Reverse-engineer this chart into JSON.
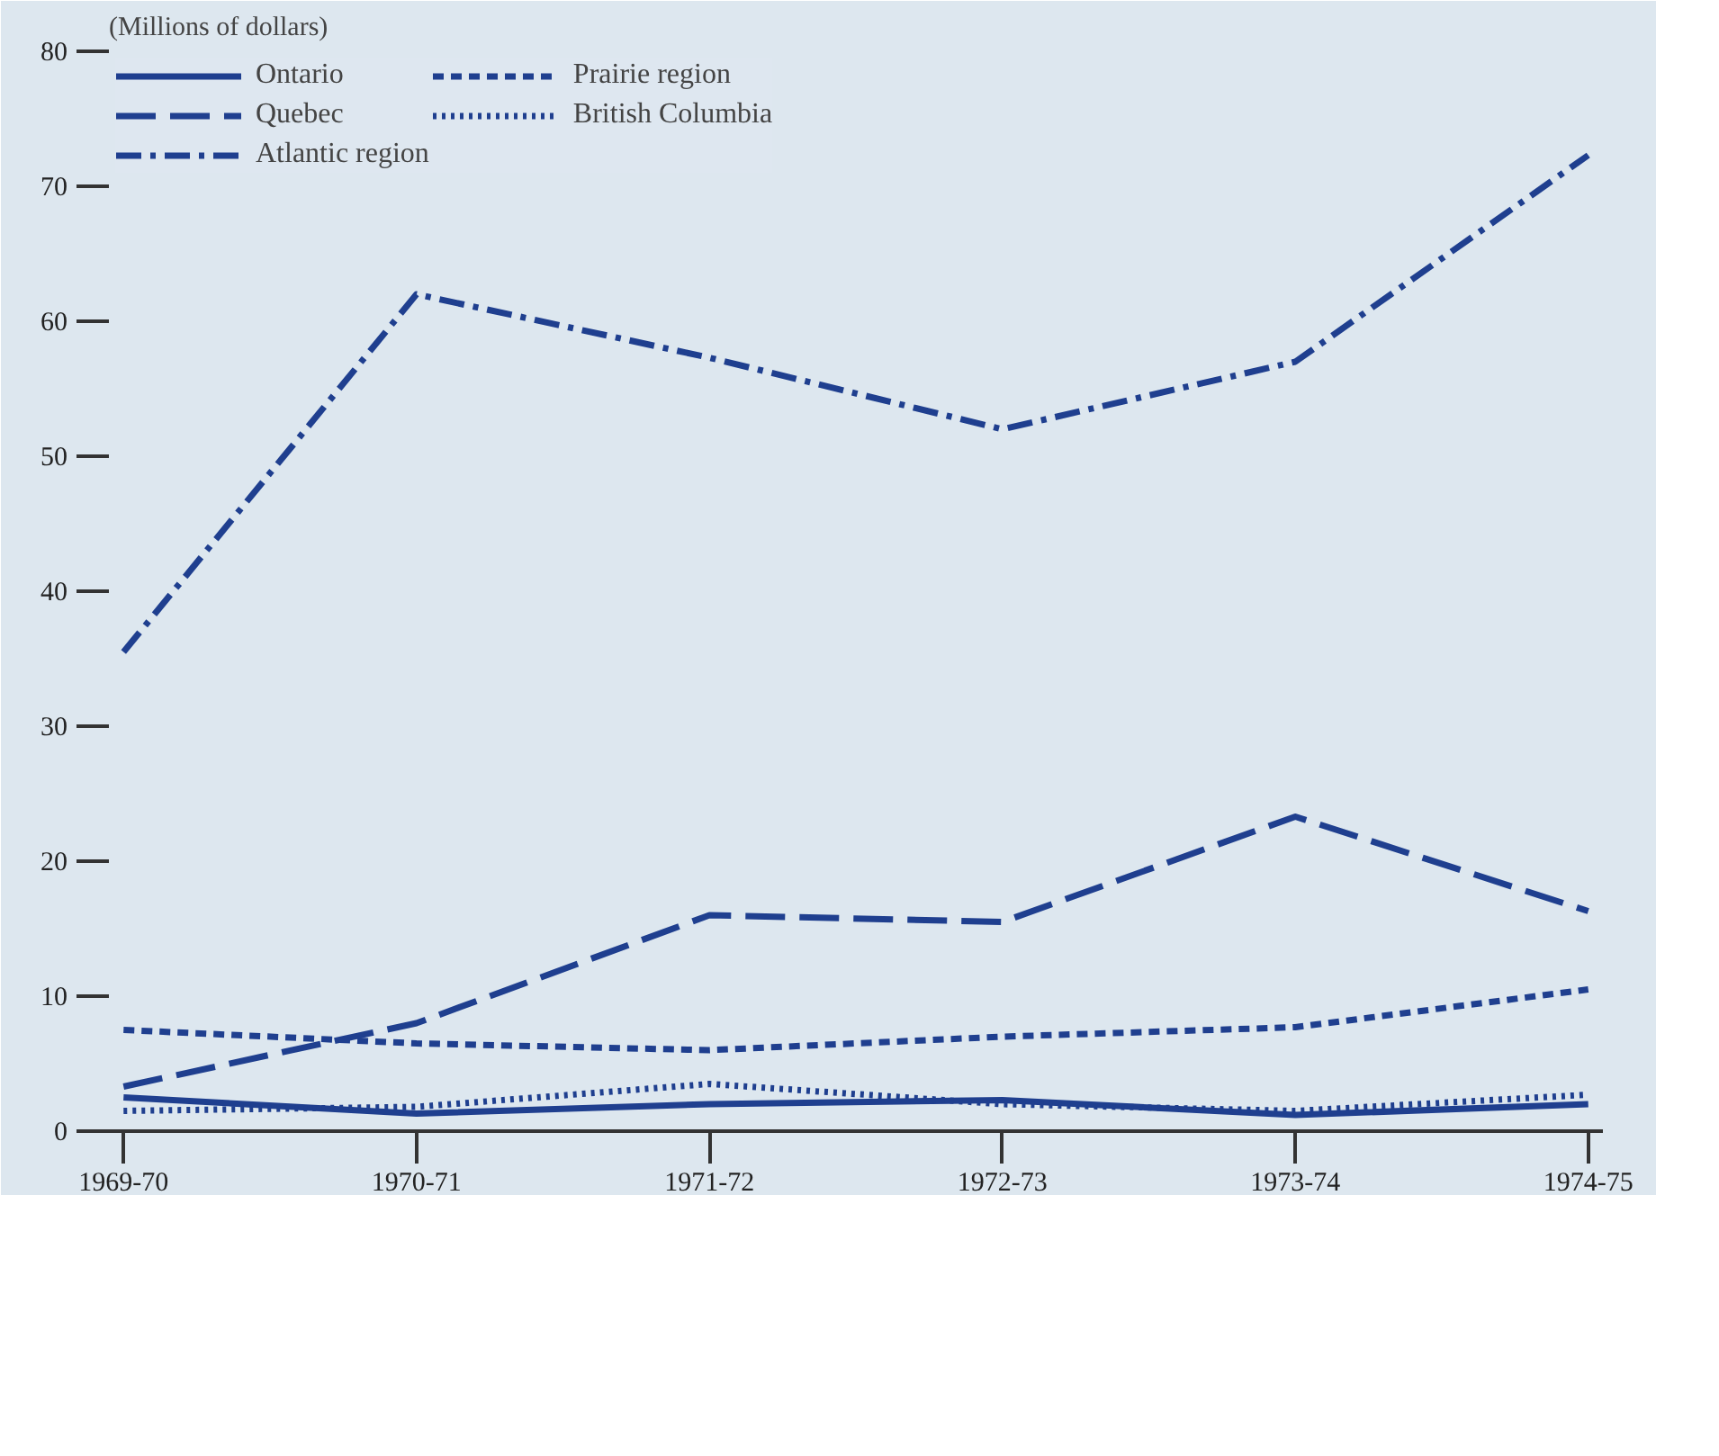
{
  "chart_data": {
    "type": "line",
    "ylabel": "(Millions of dollars)",
    "categories": [
      "1969-70",
      "1970-71",
      "1971-72",
      "1972-73",
      "1973-74",
      "1974-75"
    ],
    "ylim": [
      0,
      80
    ],
    "yticks": [
      0,
      10,
      20,
      30,
      40,
      50,
      60,
      70,
      80
    ],
    "grid": false,
    "legend": "top",
    "marker": "none",
    "series": [
      {
        "name": "Ontario",
        "color": "#1f3f8f",
        "line_style": "solid",
        "values": [
          2.5,
          1.3,
          2,
          2.3,
          1.2,
          2
        ]
      },
      {
        "name": "Quebec",
        "color": "#1f3f8f",
        "line_style": "long_dashed",
        "values": [
          3.3,
          8,
          16,
          15.5,
          23.3,
          16.3
        ]
      },
      {
        "name": "Atlantic region",
        "color": "#1f3f8f",
        "line_style": "dashdot",
        "values": [
          35.5,
          62,
          57.3,
          52,
          57,
          72.3
        ]
      },
      {
        "name": "Prairie region",
        "color": "#1f3f8f",
        "line_style": "dashed",
        "values": [
          7.5,
          6.5,
          6,
          7,
          7.7,
          10.5
        ]
      },
      {
        "name": "British Columbia",
        "color": "#1f3f8f",
        "line_style": "dotted",
        "values": [
          1.5,
          1.8,
          3.5,
          2,
          1.5,
          2.7
        ]
      }
    ]
  }
}
